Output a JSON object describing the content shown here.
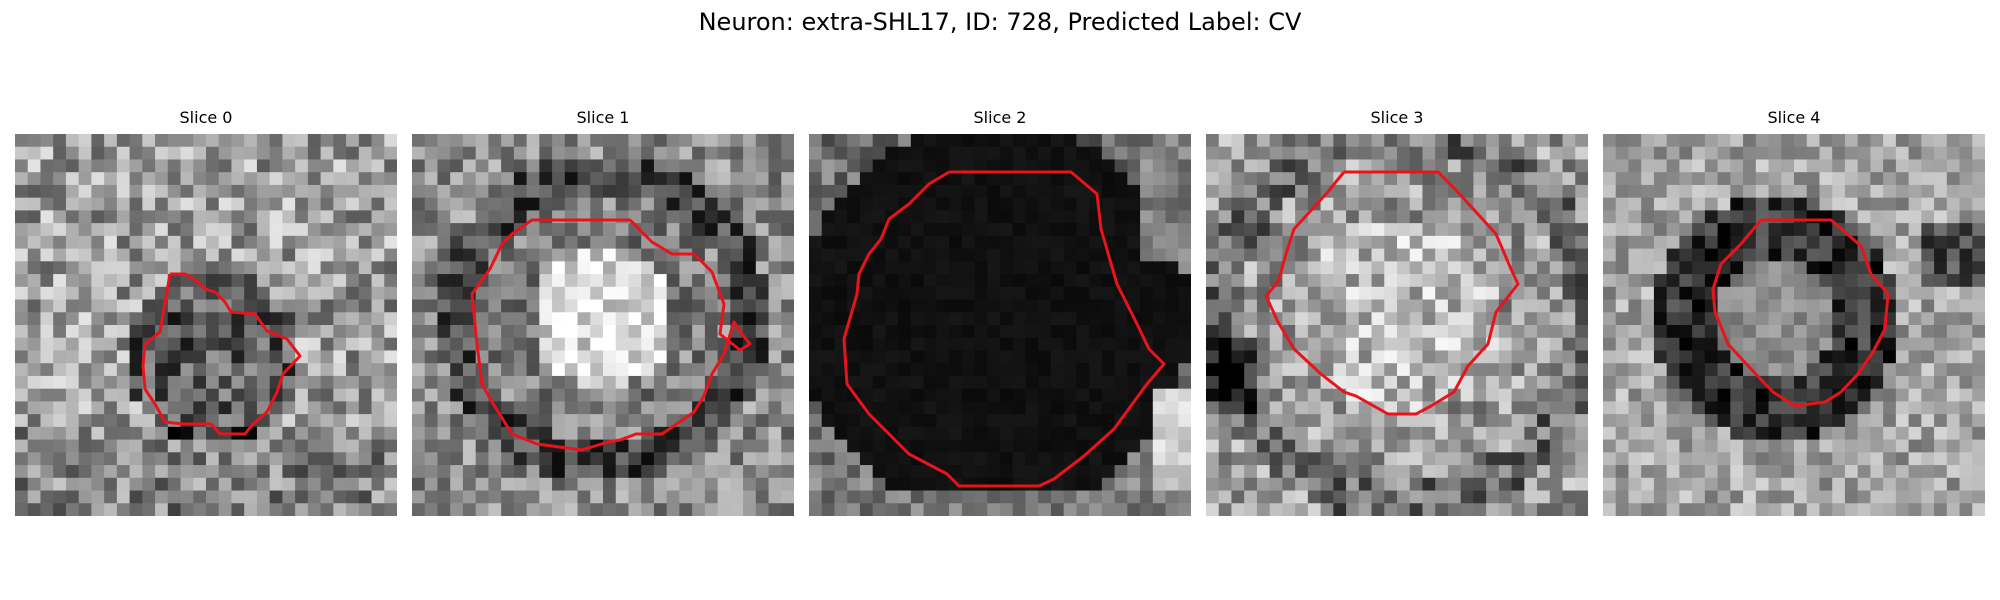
{
  "figure": {
    "title": "Neuron: extra-SHL17, ID: 728, Predicted Label: CV"
  },
  "slices": [
    {
      "title": "Slice 0",
      "tone": "textured-mid",
      "seed": 11
    },
    {
      "title": "Slice 1",
      "tone": "bright-center",
      "seed": 23
    },
    {
      "title": "Slice 2",
      "tone": "dark-blob",
      "seed": 37
    },
    {
      "title": "Slice 3",
      "tone": "light-textured",
      "seed": 41
    },
    {
      "title": "Slice 4",
      "tone": "dark-ring",
      "seed": 53
    }
  ],
  "colors": {
    "contour": "#e8141c",
    "background": "#ffffff"
  }
}
